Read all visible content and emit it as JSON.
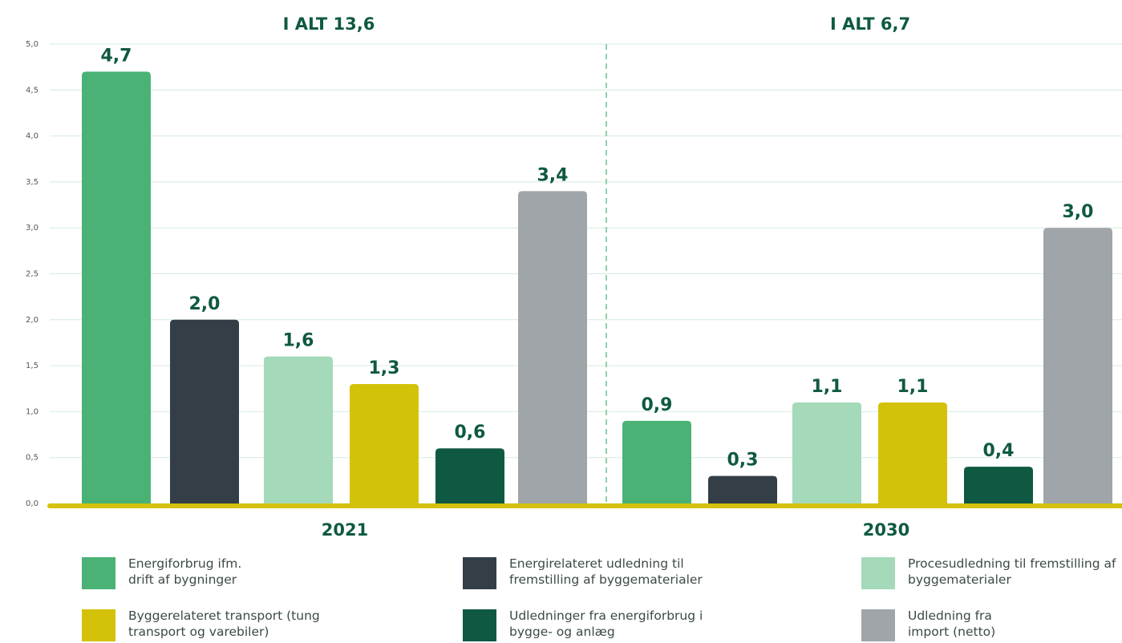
{
  "chart_data": {
    "type": "bar",
    "annotations": [
      "I ALT 13,6",
      "I ALT 6,7"
    ],
    "categories": [
      "2021",
      "2030"
    ],
    "series": [
      {
        "name": "Energiforbrug ifm. drift af bygninger",
        "color": "#4ab274",
        "values": [
          4.7,
          0.9
        ],
        "value_labels": [
          "4,7",
          "0,9"
        ]
      },
      {
        "name": "Energirelateret udledning til fremstilling af byggematerialer",
        "color": "#343e47",
        "values": [
          2.0,
          0.3
        ],
        "value_labels": [
          "2,0",
          "0,3"
        ]
      },
      {
        "name": "Procesudledning til fremstilling af byggematerialer",
        "color": "#a4d9b9",
        "values": [
          1.6,
          1.1
        ],
        "value_labels": [
          "1,6",
          "1,1"
        ]
      },
      {
        "name": "Byggerelateret transport (tung transport og varebiler)",
        "color": "#d4c20a",
        "values": [
          1.3,
          1.1
        ],
        "value_labels": [
          "1,3",
          "1,1"
        ]
      },
      {
        "name": "Udledninger fra energiforbrug i bygge- og anlæg",
        "color": "#0f5942",
        "values": [
          0.6,
          0.4
        ],
        "value_labels": [
          "0,6",
          "0,4"
        ]
      },
      {
        "name": "Udledning fra import (netto)",
        "color": "#a0a5aa",
        "values": [
          3.4,
          3.0
        ],
        "value_labels": [
          "3,4",
          "3,0"
        ]
      }
    ],
    "ylim": [
      0,
      5
    ],
    "yticks": [
      {
        "value": 0,
        "label": "0,0"
      },
      {
        "value": 0.5,
        "label": "0,5"
      },
      {
        "value": 1,
        "label": "1,0"
      },
      {
        "value": 1.5,
        "label": "1,5"
      },
      {
        "value": 2,
        "label": "2,0"
      },
      {
        "value": 2.5,
        "label": "2,5"
      },
      {
        "value": 3,
        "label": "3,0"
      },
      {
        "value": 3.5,
        "label": "3,5"
      },
      {
        "value": 4,
        "label": "4,0"
      },
      {
        "value": 4.5,
        "label": "4,5"
      },
      {
        "value": 5,
        "label": "5,0"
      }
    ],
    "grid": true
  }
}
